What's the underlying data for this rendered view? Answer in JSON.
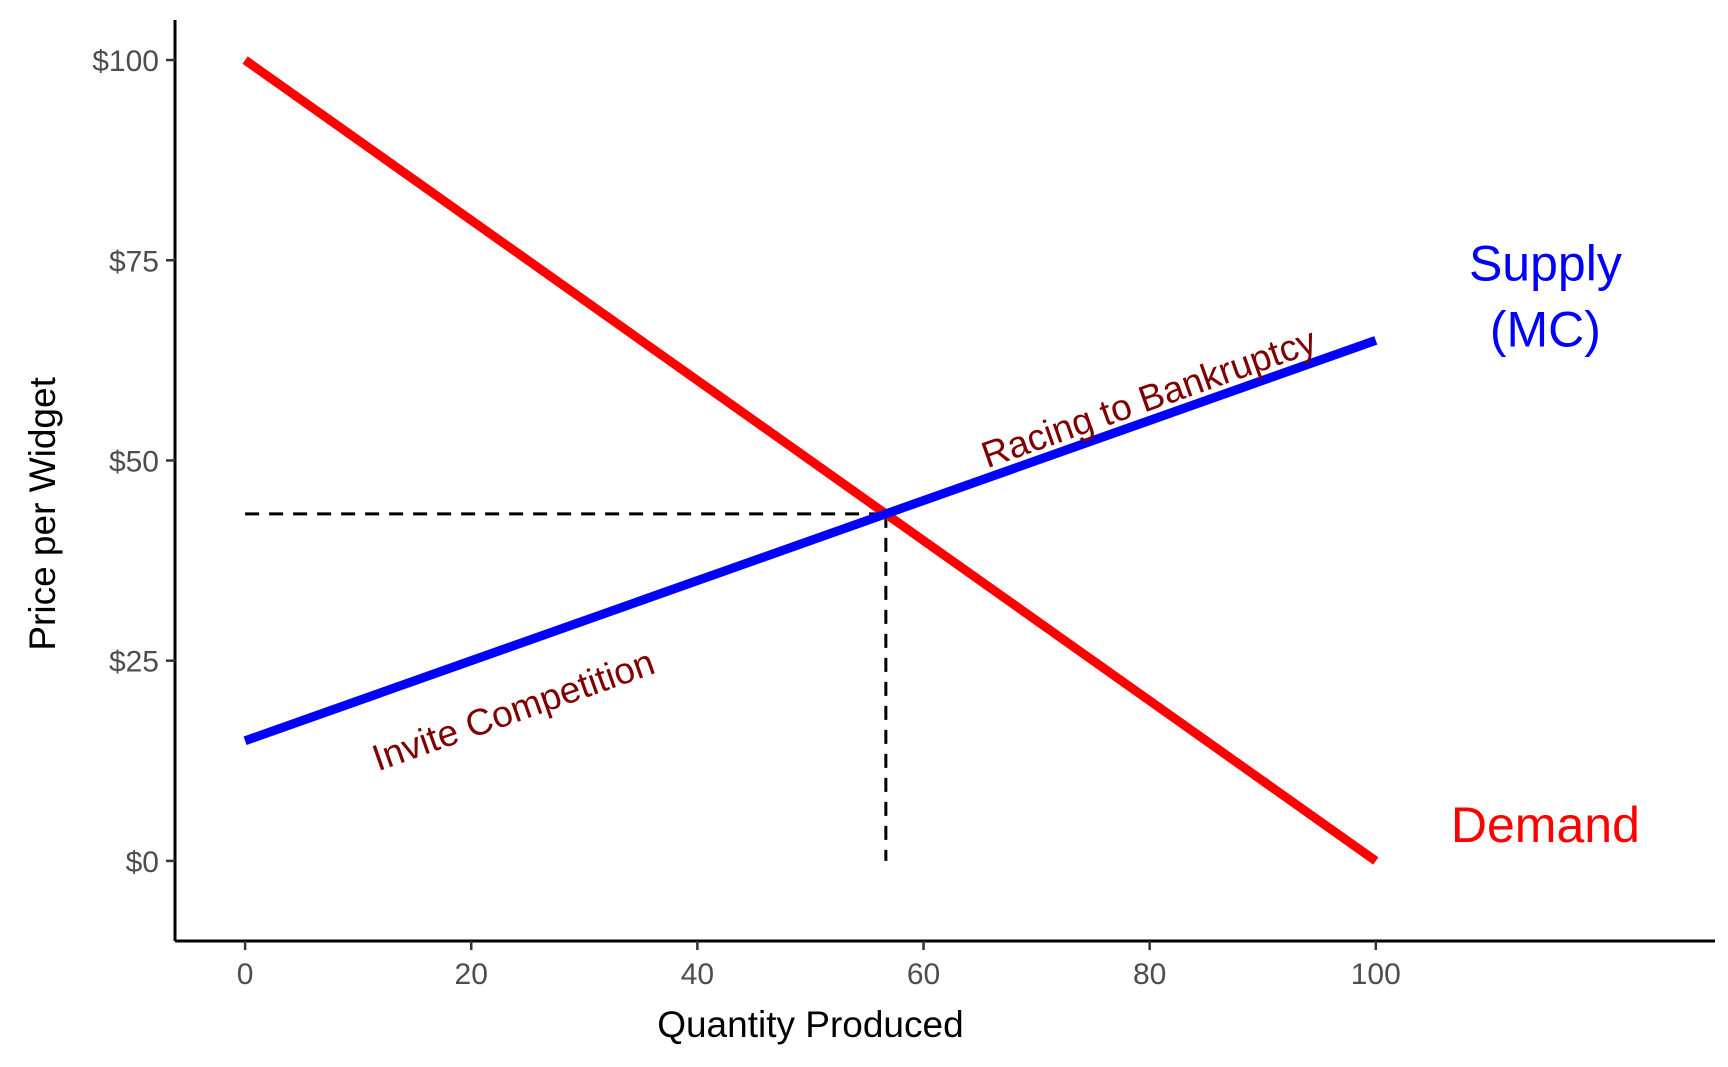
{
  "chart_data": {
    "type": "line",
    "xlabel": "Quantity Produced",
    "ylabel": "Price per Widget",
    "xlim": [
      -6.2,
      130
    ],
    "ylim": [
      -10,
      105
    ],
    "x_ticks": [
      0,
      20,
      40,
      60,
      80,
      100
    ],
    "x_tick_labels": [
      "0",
      "20",
      "40",
      "60",
      "80",
      "100"
    ],
    "y_ticks": [
      0,
      25,
      50,
      75,
      100
    ],
    "y_tick_labels": [
      "$0",
      "$25",
      "$50",
      "$75",
      "$100"
    ],
    "grid": false,
    "series": [
      {
        "name": "Demand",
        "color": "#ff0000",
        "x": [
          0,
          100
        ],
        "y": [
          100,
          0
        ]
      },
      {
        "name": "Supply\n(MC)",
        "color": "#0000ff",
        "x": [
          0,
          100
        ],
        "y": [
          15,
          65
        ]
      }
    ],
    "series_labels": [
      {
        "series": "Supply\n(MC)",
        "lines": [
          "Supply",
          "(MC)"
        ],
        "x": 115,
        "y": 70.5,
        "color": "#0000ff"
      },
      {
        "series": "Demand",
        "lines": [
          "Demand"
        ],
        "x": 115,
        "y": 4.5,
        "color": "#ff0000"
      }
    ],
    "equilibrium": {
      "x": 56.67,
      "y": 43.33
    },
    "annotations": [
      {
        "text": "Racing to Bankruptcy",
        "x": 80,
        "y": 57.5,
        "color": "#800000"
      },
      {
        "text": "Invite Competition",
        "x": 23.8,
        "y": 18.5,
        "color": "#800000"
      }
    ]
  }
}
